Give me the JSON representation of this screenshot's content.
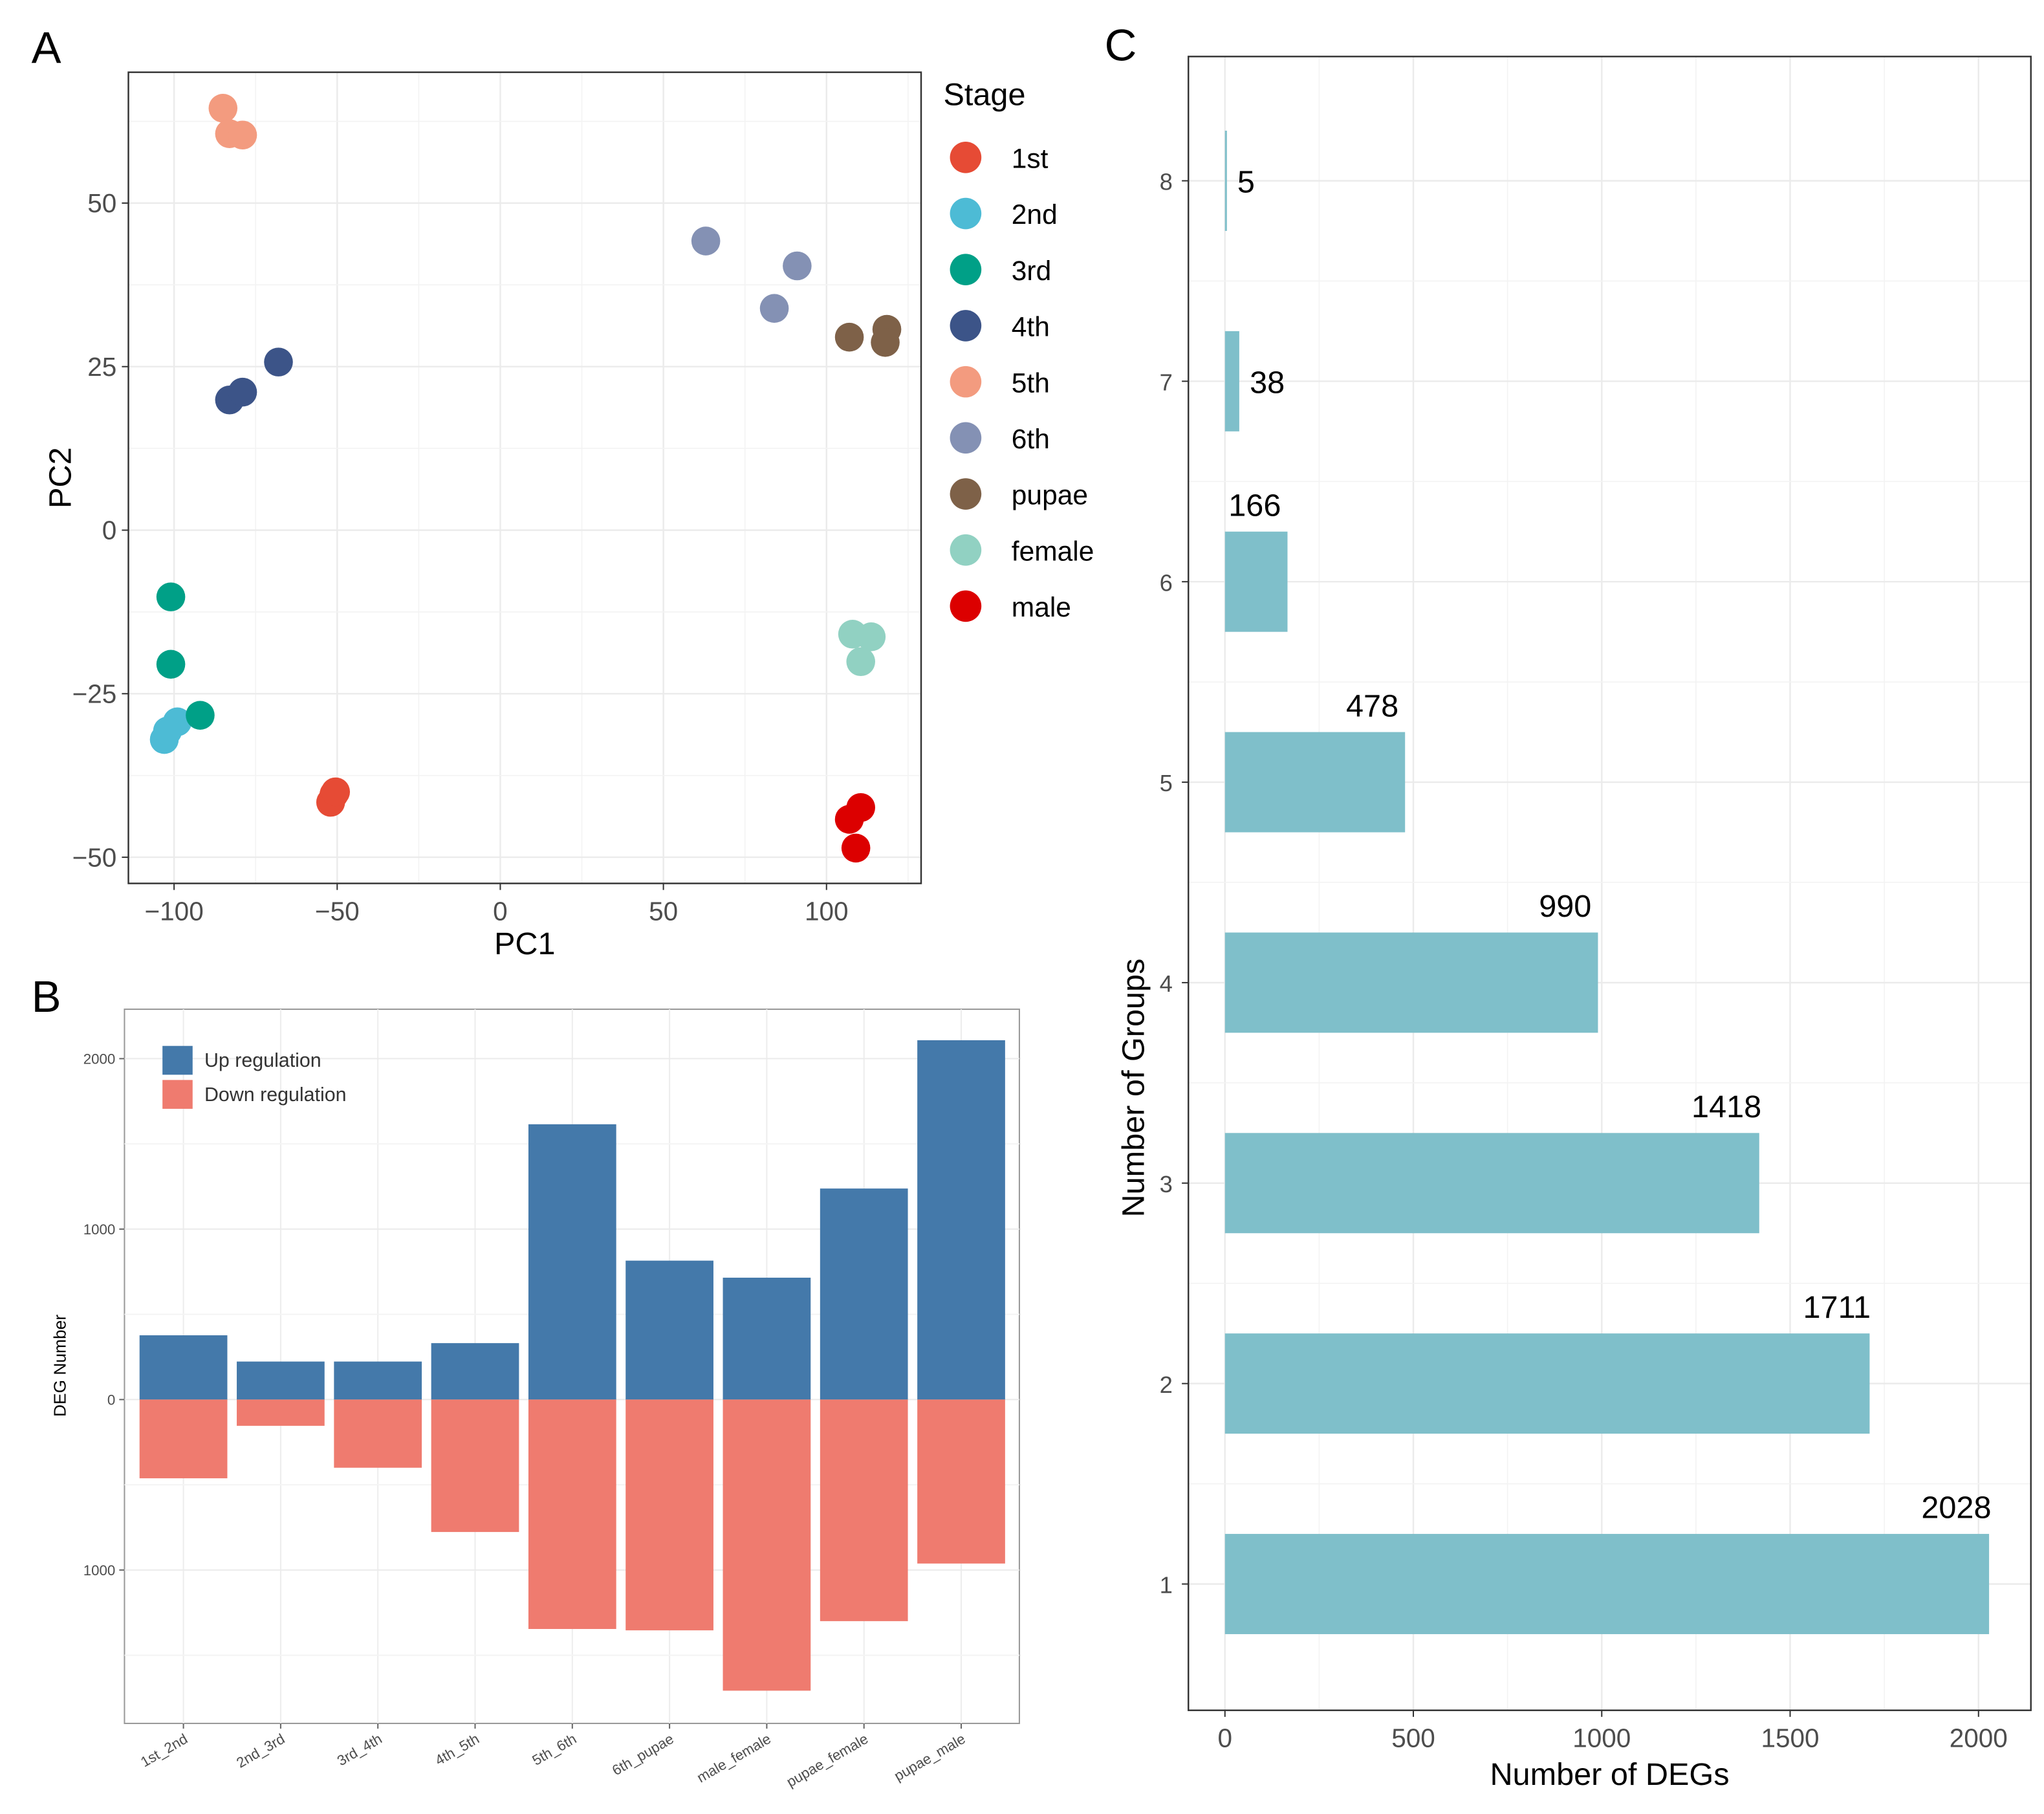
{
  "chart_data": [
    {
      "panel": "A",
      "type": "scatter",
      "xlabel": "PC1",
      "ylabel": "PC2",
      "xlim": [
        -114,
        129
      ],
      "ylim": [
        -54,
        70
      ],
      "xticks": [
        -100,
        -50,
        0,
        50,
        100
      ],
      "yticks": [
        -50,
        -25,
        0,
        25,
        50
      ],
      "xtick_labels": [
        "−100",
        "−50",
        "0",
        "50",
        "100"
      ],
      "ytick_labels": [
        "−50",
        "−25",
        "0",
        "25",
        "50"
      ],
      "grid": true,
      "legend": {
        "title": "Stage",
        "placement": "right"
      },
      "series": [
        {
          "name": "1st",
          "color": "#E64B35",
          "points": [
            [
              -51,
              -40.4
            ],
            [
              -52,
              -41.6
            ],
            [
              -50.5,
              -40.0
            ]
          ]
        },
        {
          "name": "2nd",
          "color": "#4DBBD5",
          "points": [
            [
              -103,
              -32
            ],
            [
              -99,
              -29.3
            ],
            [
              -102,
              -30.7
            ]
          ]
        },
        {
          "name": "3rd",
          "color": "#00A087",
          "points": [
            [
              -101,
              -10.2
            ],
            [
              -101,
              -20.5
            ],
            [
              -92,
              -28.3
            ]
          ]
        },
        {
          "name": "4th",
          "color": "#3C5488",
          "points": [
            [
              -68,
              25.7
            ],
            [
              -83,
              19.9
            ],
            [
              -79,
              21.1
            ]
          ]
        },
        {
          "name": "5th",
          "color": "#F39B7F",
          "points": [
            [
              -85,
              64.5
            ],
            [
              -83,
              60.6
            ],
            [
              -79,
              60.4
            ]
          ]
        },
        {
          "name": "6th",
          "color": "#8491B4",
          "points": [
            [
              63,
              44.2
            ],
            [
              91,
              40.4
            ],
            [
              84,
              33.9
            ]
          ]
        },
        {
          "name": "pupae",
          "color": "#7E6148",
          "points": [
            [
              107,
              29.5
            ],
            [
              118.5,
              30.7
            ],
            [
              118,
              28.7
            ]
          ]
        },
        {
          "name": "female",
          "color": "#91D1C2",
          "points": [
            [
              108,
              -15.9
            ],
            [
              113.7,
              -16.3
            ],
            [
              110.5,
              -20.1
            ]
          ]
        },
        {
          "name": "male",
          "color": "#DC0000",
          "points": [
            [
              110.5,
              -42.4
            ],
            [
              107,
              -44.2
            ],
            [
              109,
              -48.6
            ]
          ]
        }
      ]
    },
    {
      "panel": "B",
      "type": "bar",
      "ylabel": "DEG Number",
      "ylim": [
        -1900,
        2290
      ],
      "yticks": [
        2000,
        1000,
        0,
        -1000
      ],
      "ytick_labels": [
        "2000",
        "1000",
        "0",
        "1000"
      ],
      "grid": true,
      "legend": {
        "placement": "top-left"
      },
      "categories": [
        "1st_2nd",
        "2nd_3rd",
        "3rd_4th",
        "4th_5th",
        "5th_6th",
        "6th_pupae",
        "male_female",
        "pupae_female",
        "pupae_male"
      ],
      "series": [
        {
          "name": "Up regulation",
          "color": "#4479AA",
          "values": [
            377,
            223,
            223,
            331,
            1615,
            815,
            715,
            1238,
            2108
          ]
        },
        {
          "name": "Down regulation",
          "color": "#EF7B6F",
          "values": [
            -462,
            -154,
            -400,
            -777,
            -1346,
            -1354,
            -1708,
            -1300,
            -962
          ]
        }
      ]
    },
    {
      "panel": "C",
      "type": "bar",
      "orientation": "horizontal",
      "xlabel": "Number of DEGs",
      "ylabel": "Number of Groups",
      "xlim": [
        -97,
        2139
      ],
      "ylim": [
        0.37,
        8.62
      ],
      "xticks": [
        0,
        500,
        1000,
        1500,
        2000
      ],
      "categories": [
        "1",
        "2",
        "3",
        "4",
        "5",
        "6",
        "7",
        "8"
      ],
      "values": [
        2028,
        1711,
        1418,
        990,
        478,
        166,
        38,
        5
      ],
      "data_labels": [
        "2028",
        "1711",
        "1418",
        "990",
        "478",
        "166",
        "38",
        "5"
      ],
      "color": "#7FBFCA",
      "grid": true
    }
  ],
  "panel_letters": [
    "A",
    "B",
    "C"
  ]
}
